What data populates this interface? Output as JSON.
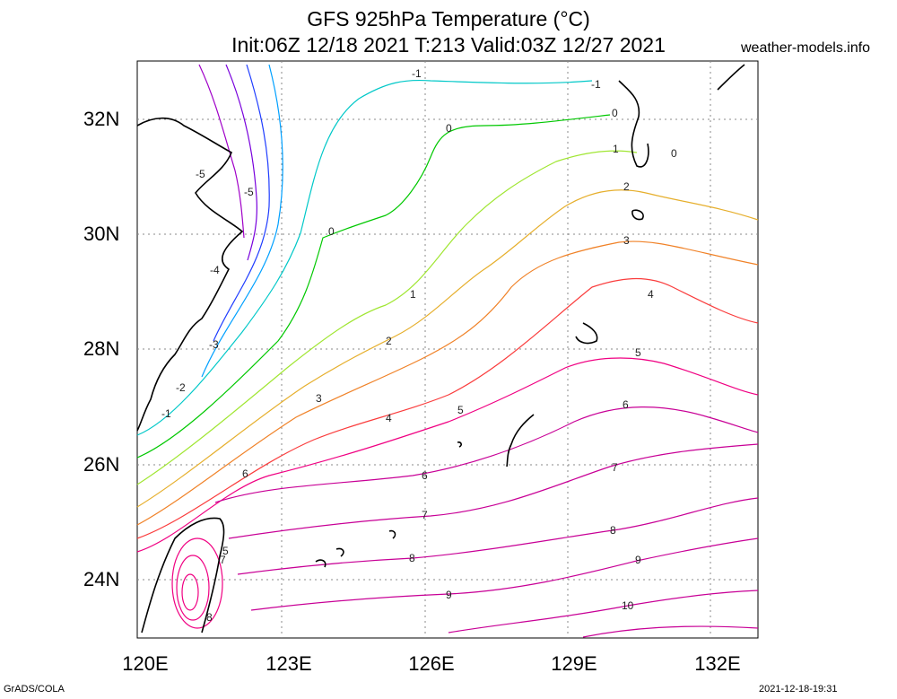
{
  "header": {
    "title_line1": "GFS 925hPa Temperature (°C)",
    "title_line2": "Init:06Z 12/18 2021 T:213 Valid:03Z 12/27 2021",
    "site": "weather-models.info"
  },
  "axes": {
    "lat_labels": [
      "32N",
      "30N",
      "28N",
      "26N",
      "24N"
    ],
    "lon_labels": [
      "120E",
      "123E",
      "126E",
      "129E",
      "132E"
    ]
  },
  "footer": {
    "credit": "GrADS/COLA",
    "timestamp": "2021-12-18-19:31"
  },
  "contour_labels": [
    {
      "text": "-5",
      "color": "#a000c8"
    },
    {
      "text": "-5",
      "color": "#a000c8"
    },
    {
      "text": "-4",
      "color": "#7800dc"
    },
    {
      "text": "-3",
      "color": "#1e3cff"
    },
    {
      "text": "-2",
      "color": "#00a0ff"
    },
    {
      "text": "-1",
      "color": "#00c8c8"
    },
    {
      "text": "-1",
      "color": "#00c8c8"
    },
    {
      "text": "-1",
      "color": "#00c8c8"
    },
    {
      "text": "0",
      "color": "#00c800"
    },
    {
      "text": "0",
      "color": "#00c800"
    },
    {
      "text": "0",
      "color": "#00c800"
    },
    {
      "text": "0",
      "color": "#00c800"
    },
    {
      "text": "1",
      "color": "#a0e632"
    },
    {
      "text": "1",
      "color": "#a0e632"
    },
    {
      "text": "2",
      "color": "#e6af2d"
    },
    {
      "text": "2",
      "color": "#e6af2d"
    },
    {
      "text": "3",
      "color": "#f08228"
    },
    {
      "text": "3",
      "color": "#f08228"
    },
    {
      "text": "4",
      "color": "#fa3c3c"
    },
    {
      "text": "4",
      "color": "#fa3c3c"
    },
    {
      "text": "5",
      "color": "#f00082"
    },
    {
      "text": "5",
      "color": "#f00082"
    },
    {
      "text": "5",
      "color": "#f00082"
    },
    {
      "text": "6",
      "color": "#c80096"
    },
    {
      "text": "6",
      "color": "#c80096"
    },
    {
      "text": "6",
      "color": "#c80096"
    },
    {
      "text": "7",
      "color": "#c80096"
    },
    {
      "text": "7",
      "color": "#c80096"
    },
    {
      "text": "7",
      "color": "#c80096"
    },
    {
      "text": "8",
      "color": "#c80096"
    },
    {
      "text": "8",
      "color": "#c80096"
    },
    {
      "text": "8",
      "color": "#c80096"
    },
    {
      "text": "9",
      "color": "#c80096"
    },
    {
      "text": "9",
      "color": "#c80096"
    },
    {
      "text": "10",
      "color": "#c80096"
    }
  ]
}
